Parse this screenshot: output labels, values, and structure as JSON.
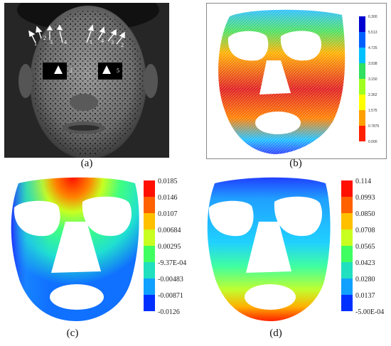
{
  "panels": {
    "a": {
      "caption": "(a)",
      "markers": [
        "1",
        "2",
        "3",
        "4",
        "1",
        "4",
        "3",
        "2",
        "5",
        "5"
      ]
    },
    "b": {
      "caption": "(b)",
      "colorbar_ticks": [
        "6.300",
        "5.513",
        "4.725",
        "3.938",
        "3.150",
        "2.362",
        "1.575",
        "0.7875",
        "0.000"
      ]
    },
    "c": {
      "caption": "(c)",
      "colorbar_ticks": [
        "0.0185",
        "0.0146",
        "0.0107",
        "0.00684",
        "0.00295",
        "-9.37E-04",
        "-0.00483",
        "-0.00871",
        "-0.0126"
      ]
    },
    "d": {
      "caption": "(d)",
      "colorbar_ticks": [
        "0.114",
        "0.0993",
        "0.0850",
        "0.0708",
        "0.0565",
        "0.0423",
        "0.0280",
        "0.0137",
        "-5.00E-04"
      ]
    }
  },
  "colors": {
    "scale": [
      "#0000ff",
      "#0080ff",
      "#00d0ff",
      "#30ff80",
      "#a0ff30",
      "#ffff00",
      "#ffa000",
      "#ff2000",
      "#e00000"
    ]
  }
}
